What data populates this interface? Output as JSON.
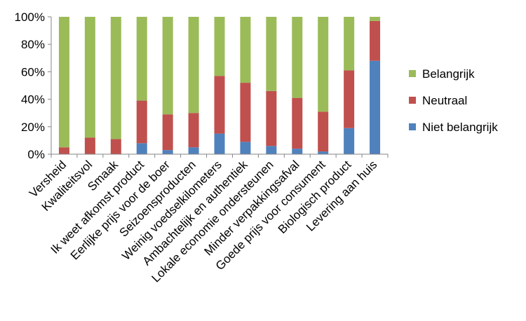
{
  "chart_data": {
    "type": "bar",
    "stacked": true,
    "percent": true,
    "categories": [
      "Versheid",
      "Kwaliteitsvol",
      "Smaak",
      "Ik weet afkomst product",
      "Eerlijke prijs voor de boer",
      "Seizoensproducten",
      "Weinig voedselkilometers",
      "Ambachtelijk en authentiek",
      "Lokale economie ondersteunen",
      "Minder verpakkingsafval",
      "Goede prijs voor consument",
      "Biologisch product",
      "Levering aan huis"
    ],
    "series": [
      {
        "name": "Niet belangrijk",
        "color": "#4f81bd",
        "values": [
          0,
          0,
          0,
          8,
          3,
          5,
          15,
          9,
          6,
          4,
          2,
          19,
          68
        ]
      },
      {
        "name": "Neutraal",
        "color": "#c0504d",
        "values": [
          5,
          12,
          11,
          31,
          26,
          25,
          42,
          43,
          40,
          37,
          29,
          42,
          29
        ]
      },
      {
        "name": "Belangrijk",
        "color": "#9bbb59",
        "values": [
          95,
          88,
          89,
          61,
          71,
          70,
          43,
          48,
          54,
          59,
          69,
          39,
          3
        ]
      }
    ],
    "yticks": [
      "0%",
      "20%",
      "40%",
      "60%",
      "80%",
      "100%"
    ],
    "ylim": [
      0,
      100
    ],
    "grid": false,
    "legend_position": "right"
  }
}
